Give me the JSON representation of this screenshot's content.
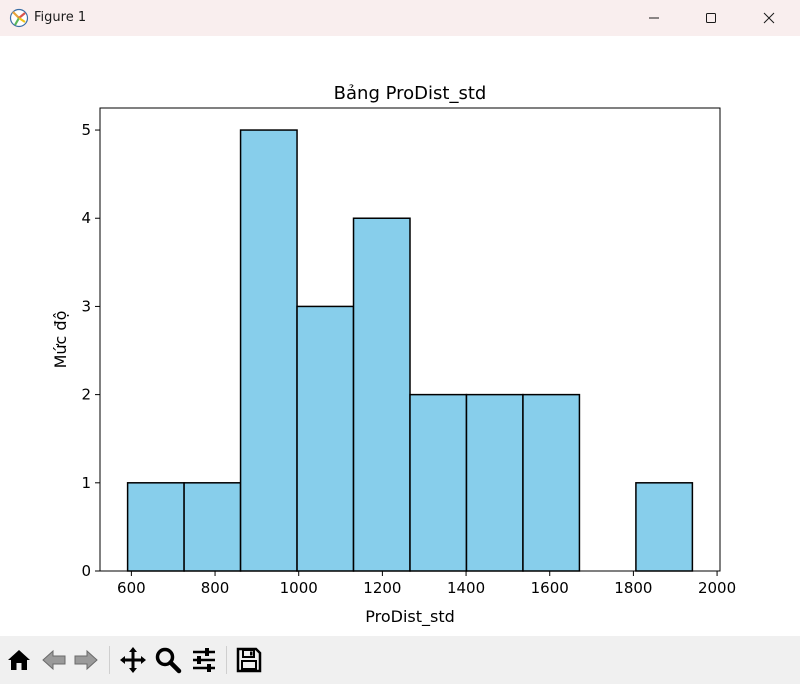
{
  "window": {
    "title": "Figure 1",
    "icons": [
      "matplotlib-icon",
      "minimize-icon",
      "maximize-icon",
      "close-icon"
    ]
  },
  "toolbar": {
    "tools": [
      "home-icon",
      "back-arrow-icon",
      "forward-arrow-icon",
      "pan-move-icon",
      "zoom-magnifier-icon",
      "configure-subplots-icon",
      "save-floppy-icon"
    ]
  },
  "chart_data": {
    "type": "bar",
    "title": "Bảng ProDist_std",
    "xlabel": "ProDist_std",
    "ylabel": "Mức độ",
    "bin_edges": [
      591,
      726,
      861,
      996,
      1131,
      1266,
      1401,
      1536,
      1671,
      1806,
      1941
    ],
    "values": [
      1,
      1,
      5,
      3,
      4,
      2,
      2,
      2,
      0,
      1
    ],
    "xlim": [
      525,
      2007
    ],
    "ylim": [
      0,
      5.25
    ],
    "xticks": [
      600,
      800,
      1000,
      1200,
      1400,
      1600,
      1800,
      2000
    ],
    "yticks": [
      0,
      1,
      2,
      3,
      4,
      5
    ],
    "bar_color": "#87ceeb",
    "edge_color": "#000000",
    "grid": false
  }
}
